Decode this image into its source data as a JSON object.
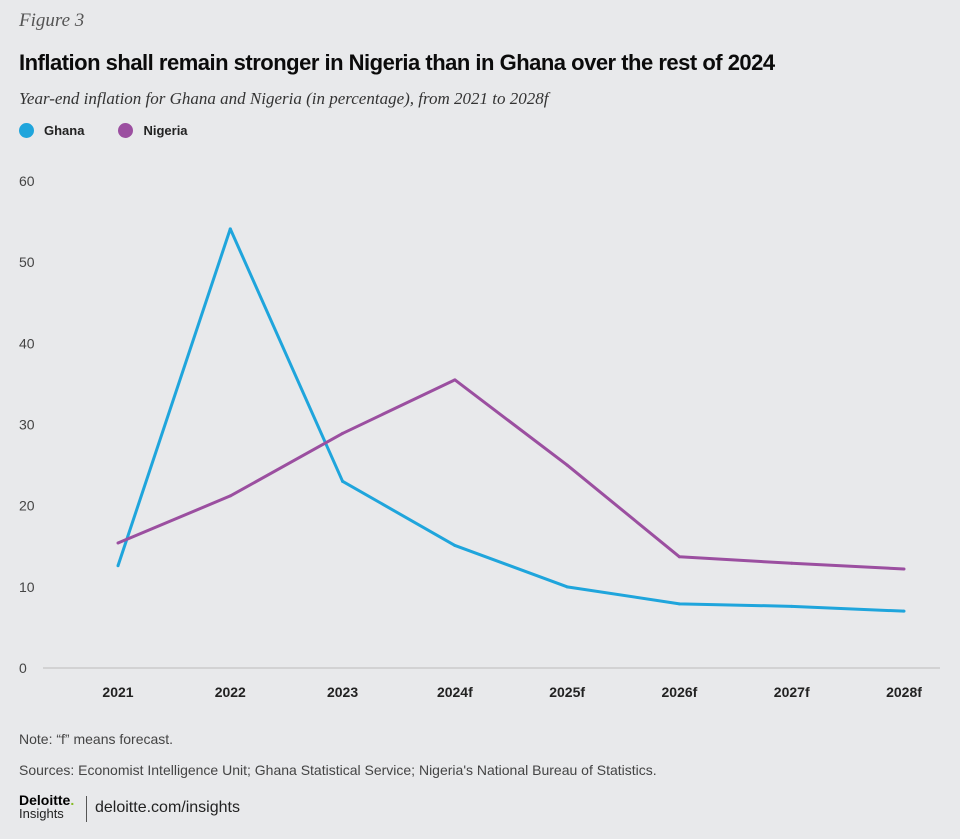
{
  "figure_label": "Figure 3",
  "footer": {
    "note": "Note: “f” means forecast.",
    "sources": "Sources: Economist Intelligence Unit; Ghana Statistical Service; Nigeria's National Bureau of Statistics.",
    "logo_brand": "Deloitte",
    "logo_sub": "Insights",
    "url": "deloitte.com/insights"
  },
  "chart_data": {
    "type": "line",
    "title": "Inflation shall remain stronger in Nigeria than in Ghana over the rest of 2024",
    "subtitle": "Year-end inflation for Ghana and Nigeria (in percentage), from 2021 to 2028f",
    "xlabel": "",
    "ylabel": "",
    "categories": [
      "2021",
      "2022",
      "2023",
      "2024f",
      "2025f",
      "2026f",
      "2027f",
      "2028f"
    ],
    "ylim": [
      0,
      60
    ],
    "yticks": [
      0,
      10,
      20,
      30,
      40,
      50,
      60
    ],
    "grid": false,
    "legend_position": "top-left",
    "series": [
      {
        "name": "Ghana",
        "color": "#1fa5dc",
        "values": [
          12.6,
          54.1,
          23.0,
          15.1,
          10.0,
          7.9,
          7.6,
          7.0
        ]
      },
      {
        "name": "Nigeria",
        "color": "#9b4fa0",
        "values": [
          15.4,
          21.2,
          28.9,
          35.5,
          25.0,
          13.7,
          12.9,
          12.2
        ]
      }
    ]
  }
}
